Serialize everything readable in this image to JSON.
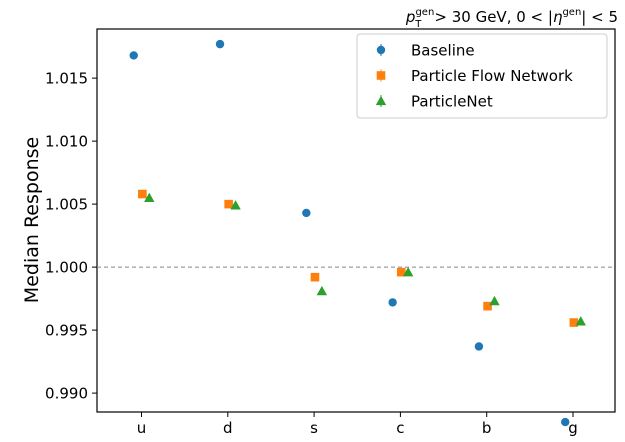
{
  "chart_data": {
    "type": "scatter",
    "title_main": "> 30 GeV, 0 < |",
    "title_pt": "p",
    "title_pt_sup": "gen",
    "title_pt_sub": "T",
    "title_eta": "η",
    "title_eta_sup": "gen",
    "title_end": "| < 5",
    "ylabel": "Median Response",
    "xlabel": "",
    "categories": [
      "u",
      "d",
      "s",
      "c",
      "b",
      "g"
    ],
    "ylim": [
      0.9885,
      1.0189
    ],
    "yticks": [
      0.99,
      0.995,
      1.0,
      1.005,
      1.01,
      1.015
    ],
    "ytick_labels": [
      "0.990",
      "0.995",
      "1.000",
      "1.005",
      "1.010",
      "1.015"
    ],
    "reference_line": 1.0,
    "legend_position": "top-right",
    "series": [
      {
        "name": "Baseline",
        "marker": "circle",
        "color": "#1f77b4",
        "offset": -0.09,
        "values": [
          1.0168,
          1.0177,
          1.0043,
          0.9972,
          0.9937,
          0.9877
        ]
      },
      {
        "name": "Particle Flow Network",
        "marker": "square",
        "color": "#ff7f0e",
        "offset": 0.01,
        "values": [
          1.0058,
          1.005,
          0.9992,
          0.9996,
          0.9969,
          0.9956
        ]
      },
      {
        "name": "ParticleNet",
        "marker": "triangle",
        "color": "#2ca02c",
        "offset": 0.09,
        "values": [
          1.0055,
          1.0049,
          0.9981,
          0.9996,
          0.9973,
          0.9957
        ]
      }
    ]
  }
}
